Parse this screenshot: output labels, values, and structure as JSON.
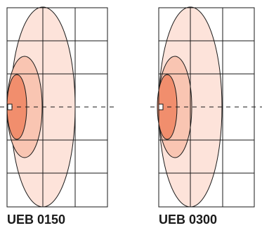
{
  "diagrams": [
    {
      "label": "UEB 0150"
    },
    {
      "label": "UEB 0300"
    }
  ],
  "colors": {
    "outer_zone": "#fde3da",
    "middle_zone": "#f9c5b2",
    "inner_zone": "#f18e6d",
    "grid": "#1a1a1a",
    "axis": "#1a1a1a"
  }
}
